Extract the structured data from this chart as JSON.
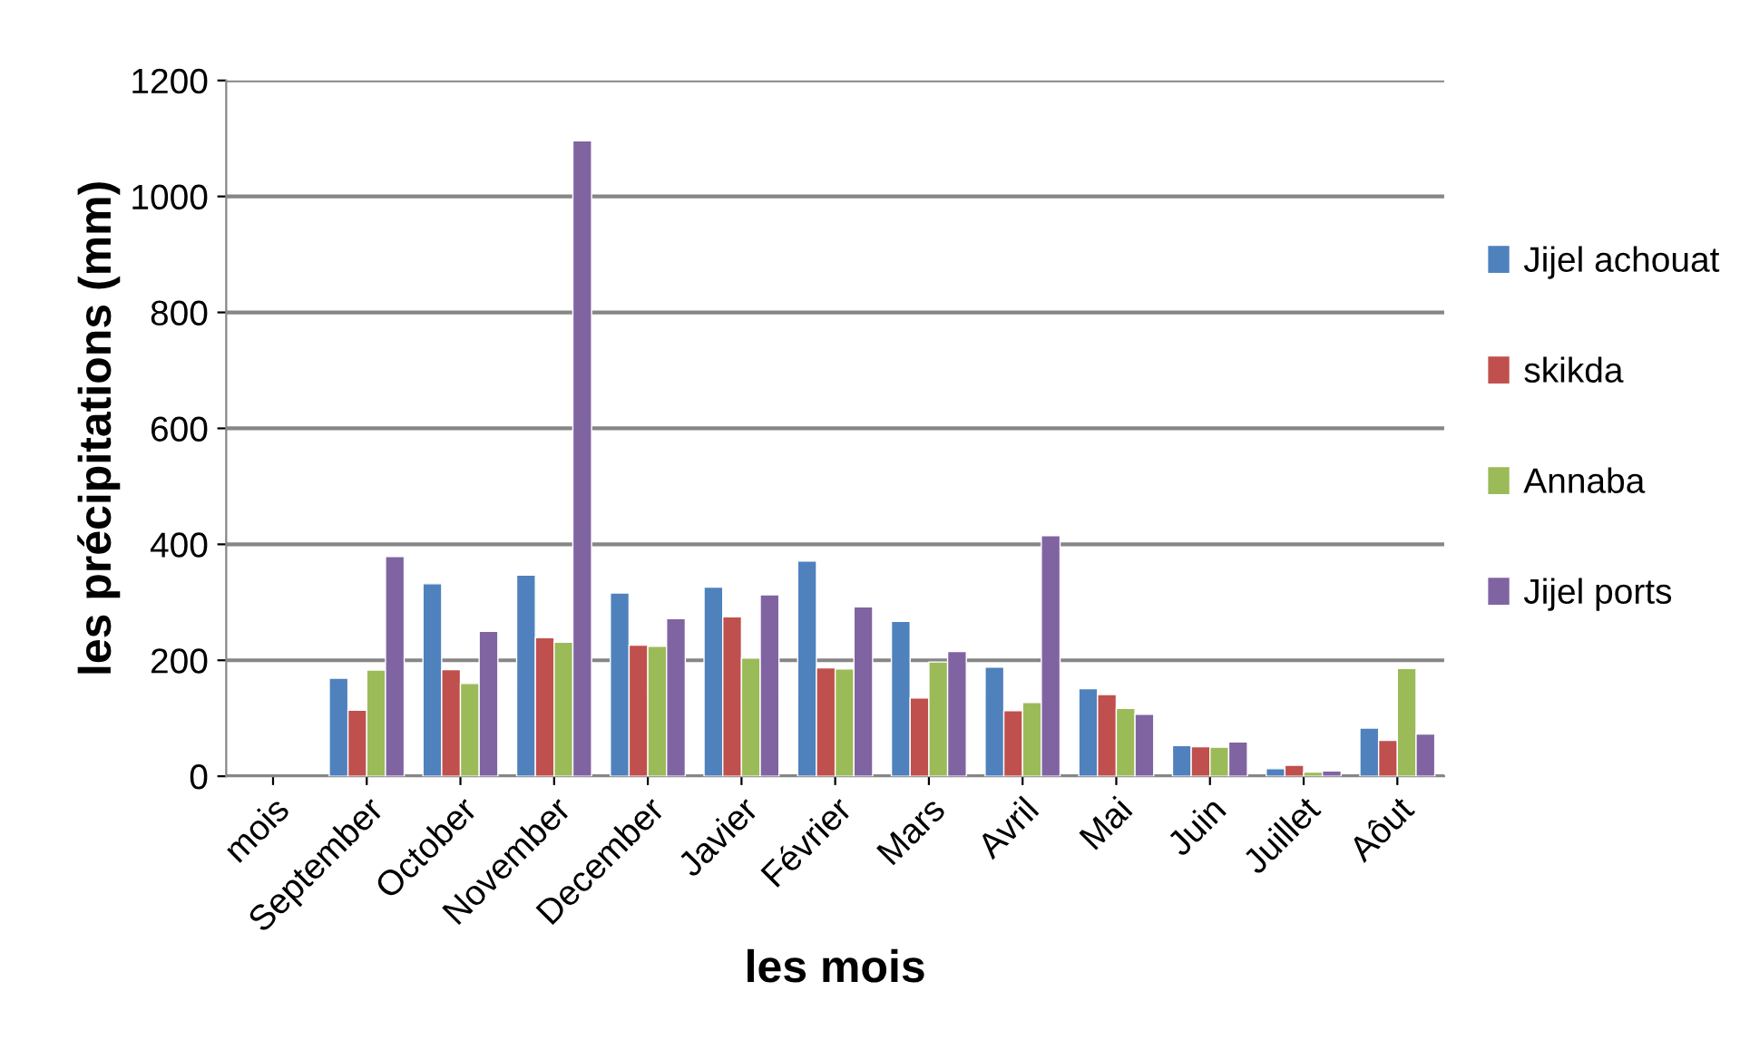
{
  "chart_data": {
    "type": "bar",
    "xlabel": "les mois",
    "ylabel": "les précipitations (mm)",
    "categories": [
      "mois",
      "September",
      "October",
      "November",
      "December",
      "Javier",
      "Février",
      "Mars",
      "Avril",
      "Mai",
      "Juin",
      "Juillet",
      "Aôut"
    ],
    "series": [
      {
        "name": "Jijel achouat",
        "color": "#4f81bd",
        "values": [
          null,
          169,
          332,
          347,
          316,
          326,
          371,
          267,
          188,
          151,
          53,
          13,
          83
        ]
      },
      {
        "name": "skikda",
        "color": "#c0504d",
        "values": [
          null,
          114,
          184,
          239,
          226,
          275,
          187,
          135,
          113,
          141,
          51,
          19,
          62
        ]
      },
      {
        "name": "Annaba",
        "color": "#9bbb59",
        "values": [
          null,
          183,
          160,
          231,
          224,
          204,
          185,
          197,
          127,
          117,
          50,
          7,
          186
        ]
      },
      {
        "name": "Jijel ports",
        "color": "#8064a2",
        "values": [
          null,
          379,
          250,
          1096,
          272,
          313,
          292,
          215,
          415,
          107,
          59,
          9,
          73
        ]
      }
    ],
    "ylim": [
      0,
      1200
    ],
    "yticks": [
      0,
      200,
      400,
      600,
      800,
      1000,
      1200
    ],
    "grid": "y",
    "legend": "right"
  }
}
